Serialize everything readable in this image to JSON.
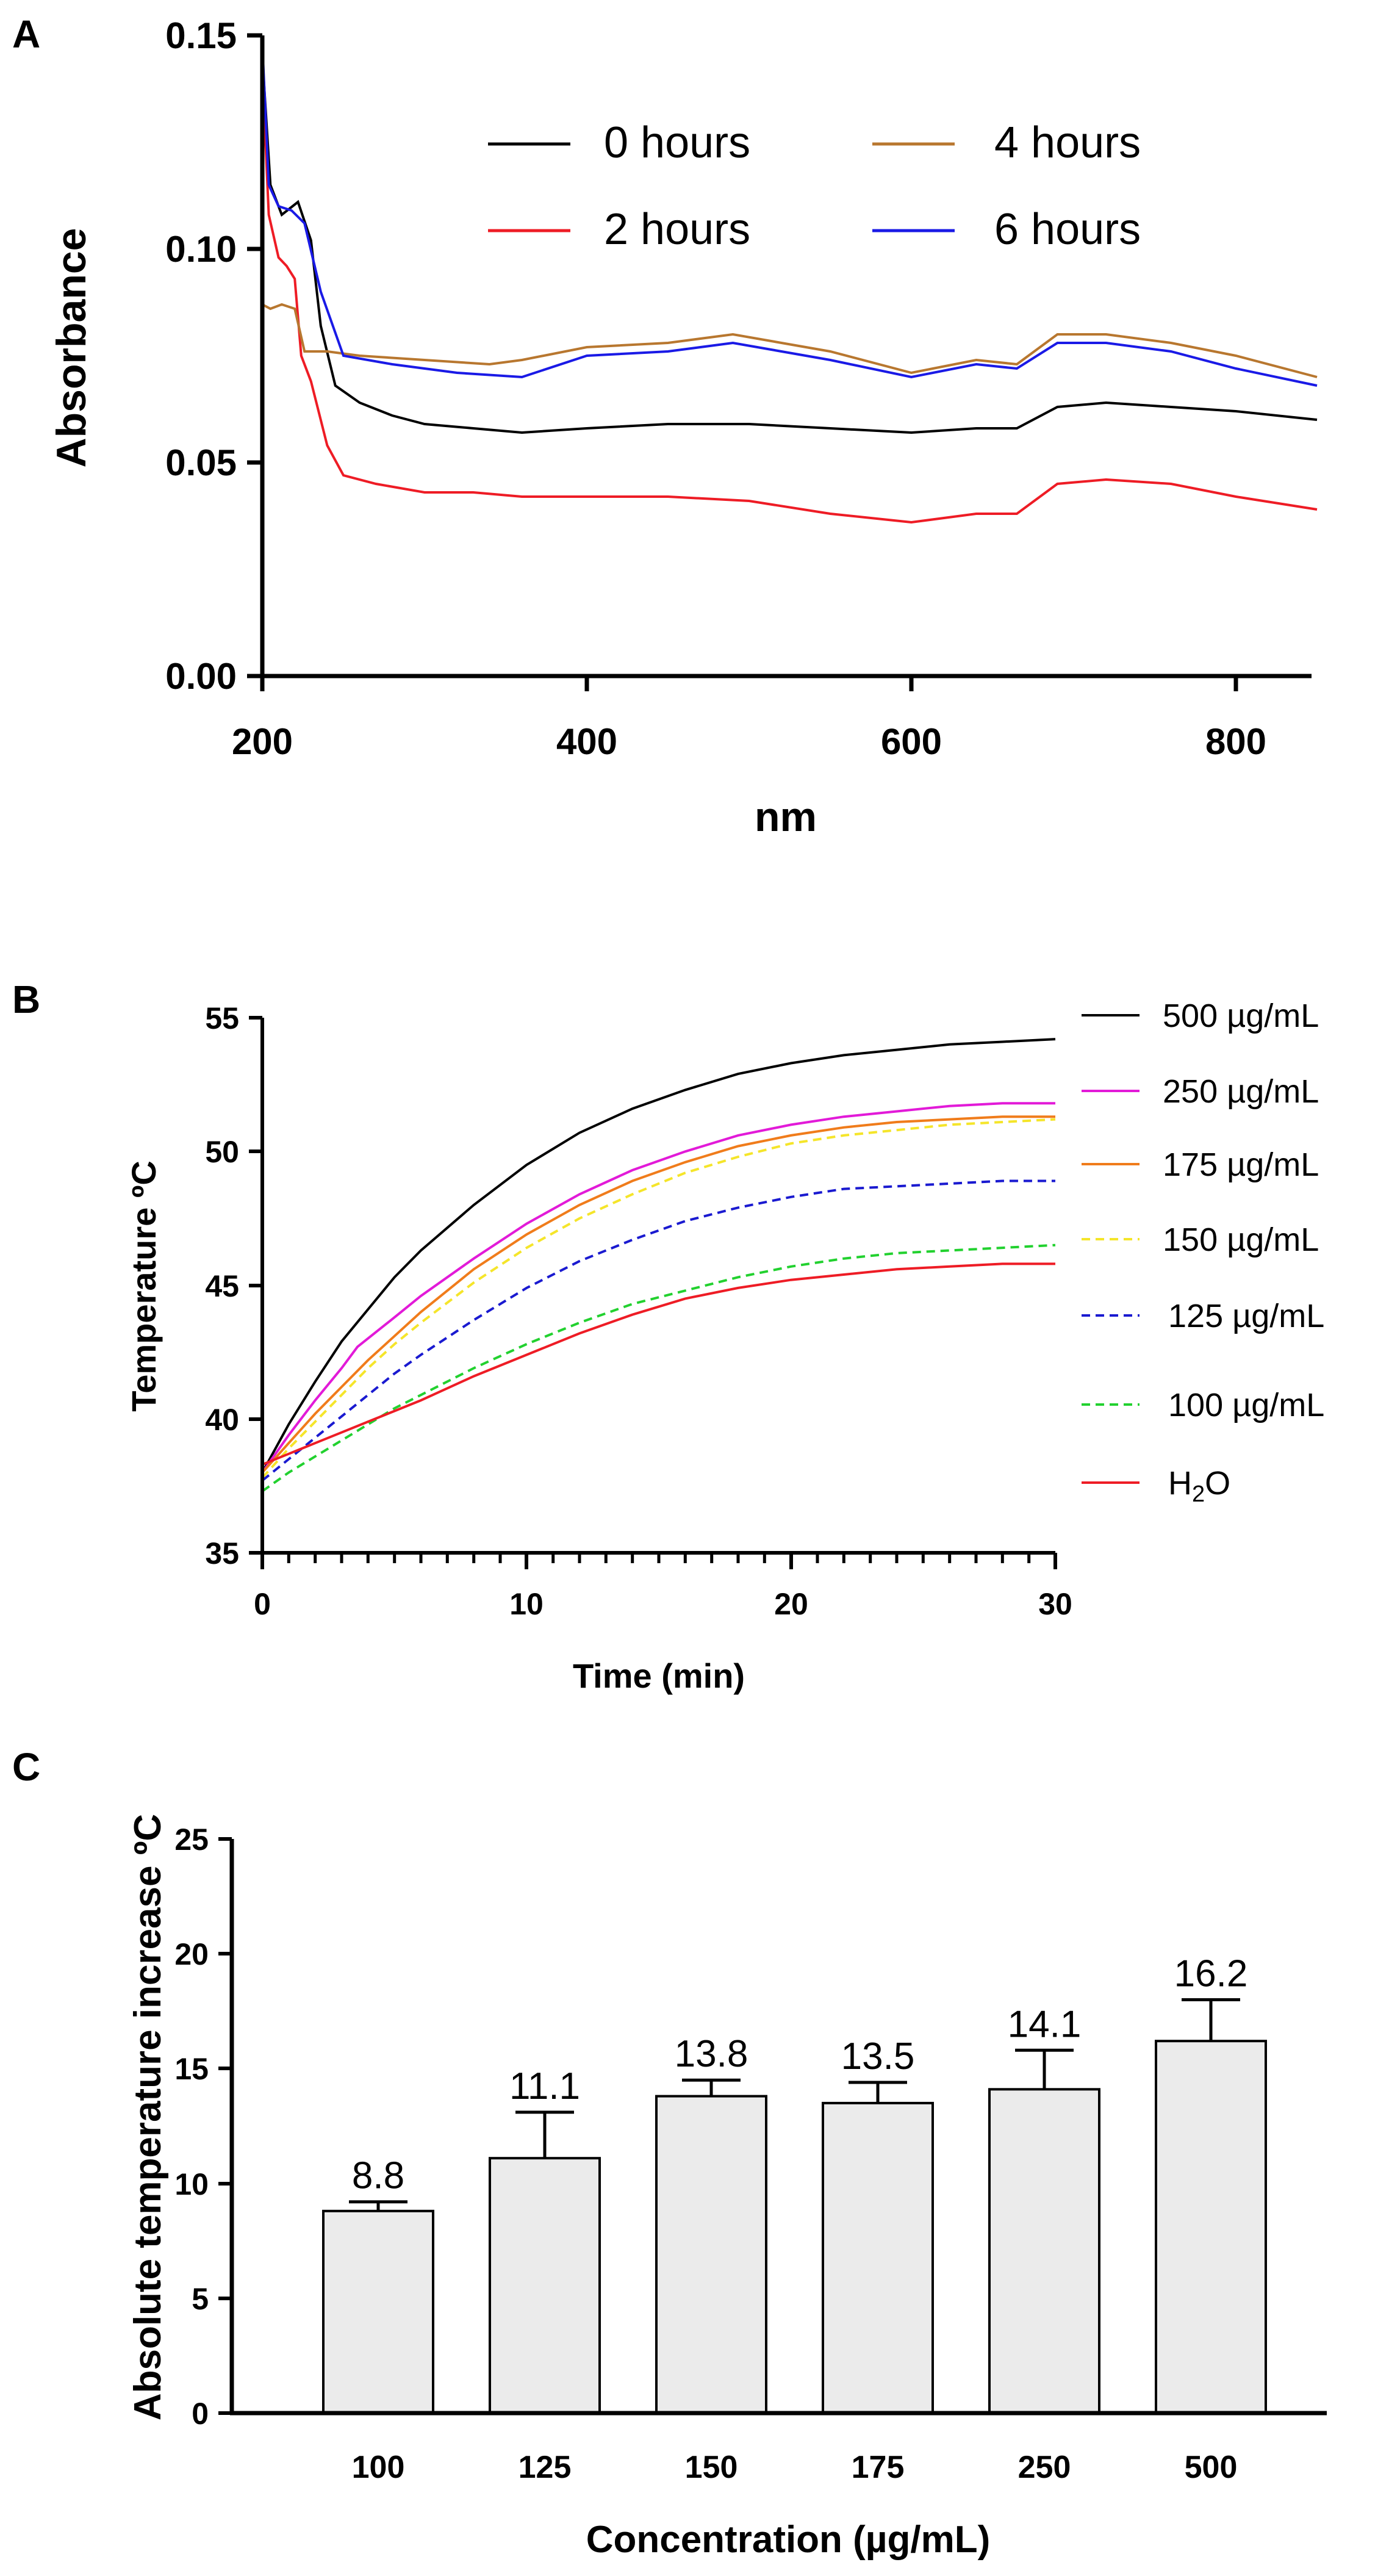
{
  "chart_data": [
    {
      "panel": "A",
      "type": "line",
      "xlabel": "nm",
      "ylabel": "Absorbance",
      "xlim": [
        200,
        850
      ],
      "ylim": [
        0,
        0.15
      ],
      "x_ticks": [
        200,
        400,
        600,
        800
      ],
      "x_tick_labels": [
        "200",
        "400",
        "600",
        "800"
      ],
      "y_ticks": [
        0,
        0.05,
        0.1,
        0.15
      ],
      "y_tick_labels": [
        "0.00",
        "0.05",
        "0.10",
        "0.15"
      ],
      "legend_position": "top-right",
      "series": [
        {
          "name": "0 hours",
          "label": "0 hours",
          "color": "#000000",
          "x": [
            200,
            205,
            212,
            222,
            230,
            236,
            245,
            260,
            280,
            300,
            330,
            360,
            400,
            450,
            500,
            550,
            600,
            640,
            665,
            690,
            720,
            760,
            800,
            850
          ],
          "y": [
            0.145,
            0.115,
            0.108,
            0.111,
            0.102,
            0.082,
            0.068,
            0.064,
            0.061,
            0.059,
            0.058,
            0.057,
            0.058,
            0.059,
            0.059,
            0.058,
            0.057,
            0.058,
            0.058,
            0.063,
            0.064,
            0.063,
            0.062,
            0.06
          ]
        },
        {
          "name": "2 hours",
          "label": "2 hours",
          "color": "#ee1c25",
          "x": [
            200,
            204,
            210,
            215,
            220,
            224,
            230,
            240,
            250,
            270,
            300,
            330,
            360,
            400,
            450,
            500,
            550,
            600,
            640,
            665,
            690,
            720,
            760,
            800,
            850
          ],
          "y": [
            0.142,
            0.108,
            0.098,
            0.096,
            0.093,
            0.075,
            0.069,
            0.054,
            0.047,
            0.045,
            0.043,
            0.043,
            0.042,
            0.042,
            0.042,
            0.041,
            0.038,
            0.036,
            0.038,
            0.038,
            0.045,
            0.046,
            0.045,
            0.042,
            0.039
          ]
        },
        {
          "name": "4 hours",
          "label": "4 hours",
          "color": "#b8772f",
          "x": [
            200,
            205,
            212,
            220,
            226,
            240,
            260,
            300,
            340,
            360,
            400,
            450,
            490,
            550,
            600,
            640,
            665,
            690,
            720,
            760,
            800,
            850
          ],
          "y": [
            0.087,
            0.086,
            0.087,
            0.086,
            0.076,
            0.076,
            0.075,
            0.074,
            0.073,
            0.074,
            0.077,
            0.078,
            0.08,
            0.076,
            0.071,
            0.074,
            0.073,
            0.08,
            0.08,
            0.078,
            0.075,
            0.07
          ]
        },
        {
          "name": "6 hours",
          "label": "6 hours",
          "color": "#1a1ae6",
          "x": [
            200,
            204,
            210,
            218,
            226,
            236,
            250,
            280,
            320,
            360,
            400,
            450,
            490,
            550,
            600,
            640,
            665,
            690,
            720,
            760,
            800,
            850
          ],
          "y": [
            0.148,
            0.115,
            0.11,
            0.109,
            0.106,
            0.09,
            0.075,
            0.073,
            0.071,
            0.07,
            0.075,
            0.076,
            0.078,
            0.074,
            0.07,
            0.073,
            0.072,
            0.078,
            0.078,
            0.076,
            0.072,
            0.068
          ]
        }
      ]
    },
    {
      "panel": "B",
      "type": "line",
      "xlabel": "Time (min)",
      "ylabel": "Temperature ºC",
      "xlim": [
        0,
        30
      ],
      "ylim": [
        35,
        55
      ],
      "x_ticks": [
        0,
        10,
        20,
        30
      ],
      "x_tick_labels": [
        "0",
        "10",
        "20",
        "30"
      ],
      "y_ticks": [
        35,
        40,
        45,
        50,
        55
      ],
      "y_tick_labels": [
        "35",
        "40",
        "45",
        "50",
        "55"
      ],
      "legend_position": "right",
      "series": [
        {
          "name": "500 µg/mL",
          "label": "500 µg/mL",
          "color": "#000000",
          "style": "solid",
          "x": [
            0,
            1,
            2,
            3,
            4,
            5,
            6,
            8,
            10,
            12,
            14,
            16,
            18,
            20,
            22,
            24,
            26,
            28,
            30
          ],
          "y": [
            38.0,
            39.8,
            41.4,
            42.9,
            44.1,
            45.3,
            46.3,
            48.0,
            49.5,
            50.7,
            51.6,
            52.3,
            52.9,
            53.3,
            53.6,
            53.8,
            54.0,
            54.1,
            54.2
          ]
        },
        {
          "name": "250 µg/mL",
          "label": "250 µg/mL",
          "color": "#e21ad8",
          "style": "solid",
          "x": [
            0,
            1,
            2,
            3,
            3.6,
            5,
            6,
            8,
            10,
            12,
            14,
            16,
            18,
            20,
            22,
            24,
            26,
            28,
            30
          ],
          "y": [
            38.0,
            39.4,
            40.7,
            41.9,
            42.7,
            43.8,
            44.6,
            46.0,
            47.3,
            48.4,
            49.3,
            50.0,
            50.6,
            51.0,
            51.3,
            51.5,
            51.7,
            51.8,
            51.8
          ]
        },
        {
          "name": "175 µg/mL",
          "label": "175 µg/mL",
          "color": "#f07c1b",
          "style": "solid",
          "x": [
            0,
            1,
            2,
            3,
            4,
            5,
            6,
            8,
            10,
            12,
            14,
            16,
            18,
            20,
            22,
            24,
            26,
            28,
            30
          ],
          "y": [
            38.0,
            39.1,
            40.2,
            41.2,
            42.2,
            43.1,
            44.0,
            45.6,
            46.9,
            48.0,
            48.9,
            49.6,
            50.2,
            50.6,
            50.9,
            51.1,
            51.2,
            51.3,
            51.3
          ]
        },
        {
          "name": "150 µg/mL",
          "label": "150 µg/mL",
          "color": "#f5e52a",
          "style": "dashed",
          "x": [
            0,
            1,
            2,
            3,
            4,
            5,
            6,
            8,
            10,
            12,
            14,
            16,
            18,
            20,
            22,
            24,
            26,
            28,
            30
          ],
          "y": [
            37.8,
            38.9,
            39.9,
            40.9,
            41.9,
            42.8,
            43.6,
            45.1,
            46.4,
            47.5,
            48.4,
            49.2,
            49.8,
            50.3,
            50.6,
            50.8,
            51.0,
            51.1,
            51.2
          ]
        },
        {
          "name": "125 µg/mL",
          "label": "125 µg/mL",
          "color": "#1a1ad0",
          "style": "dashed",
          "x": [
            0,
            1,
            2,
            3,
            4,
            5,
            6,
            8,
            10,
            12,
            14,
            16,
            18,
            20,
            22,
            24,
            26,
            28,
            30
          ],
          "y": [
            37.7,
            38.5,
            39.3,
            40.1,
            40.9,
            41.7,
            42.4,
            43.7,
            44.9,
            45.9,
            46.7,
            47.4,
            47.9,
            48.3,
            48.6,
            48.7,
            48.8,
            48.9,
            48.9
          ]
        },
        {
          "name": "100 µg/mL",
          "label": "100 µg/mL",
          "color": "#22d12f",
          "style": "dashed",
          "x": [
            0,
            1,
            2,
            3,
            4,
            5,
            6,
            8,
            10,
            12,
            14,
            16,
            18,
            20,
            22,
            24,
            26,
            28,
            30
          ],
          "y": [
            37.3,
            38.0,
            38.6,
            39.2,
            39.8,
            40.4,
            40.9,
            41.9,
            42.8,
            43.6,
            44.3,
            44.8,
            45.3,
            45.7,
            46.0,
            46.2,
            46.3,
            46.4,
            46.5
          ]
        },
        {
          "name": "H2O",
          "label_main": "H",
          "label_sub": "2",
          "label_tail": "O",
          "color": "#ee1c25",
          "style": "solid",
          "x": [
            0,
            1,
            2,
            3,
            4,
            5,
            6,
            8,
            10,
            12,
            14,
            16,
            18,
            20,
            22,
            24,
            26,
            28,
            30
          ],
          "y": [
            38.3,
            38.7,
            39.1,
            39.5,
            39.9,
            40.3,
            40.7,
            41.6,
            42.4,
            43.2,
            43.9,
            44.5,
            44.9,
            45.2,
            45.4,
            45.6,
            45.7,
            45.8,
            45.8
          ]
        }
      ]
    },
    {
      "panel": "C",
      "type": "bar",
      "xlabel": "Concentration (µg/mL)",
      "ylabel": "Absolute temperature increase ºC",
      "ylim": [
        0,
        25
      ],
      "y_ticks": [
        0,
        5,
        10,
        15,
        20,
        25
      ],
      "y_tick_labels": [
        "0",
        "5",
        "10",
        "15",
        "20",
        "25"
      ],
      "categories": [
        "100",
        "125",
        "150",
        "175",
        "250",
        "500"
      ],
      "values": [
        8.8,
        11.1,
        13.8,
        13.5,
        14.1,
        16.2
      ],
      "value_labels": [
        "8.8",
        "11.1",
        "13.8",
        "13.5",
        "14.1",
        "16.2"
      ],
      "error_upper": [
        9.2,
        13.1,
        14.5,
        14.4,
        15.8,
        18.0
      ],
      "bar_color": "#ebebeb"
    }
  ]
}
